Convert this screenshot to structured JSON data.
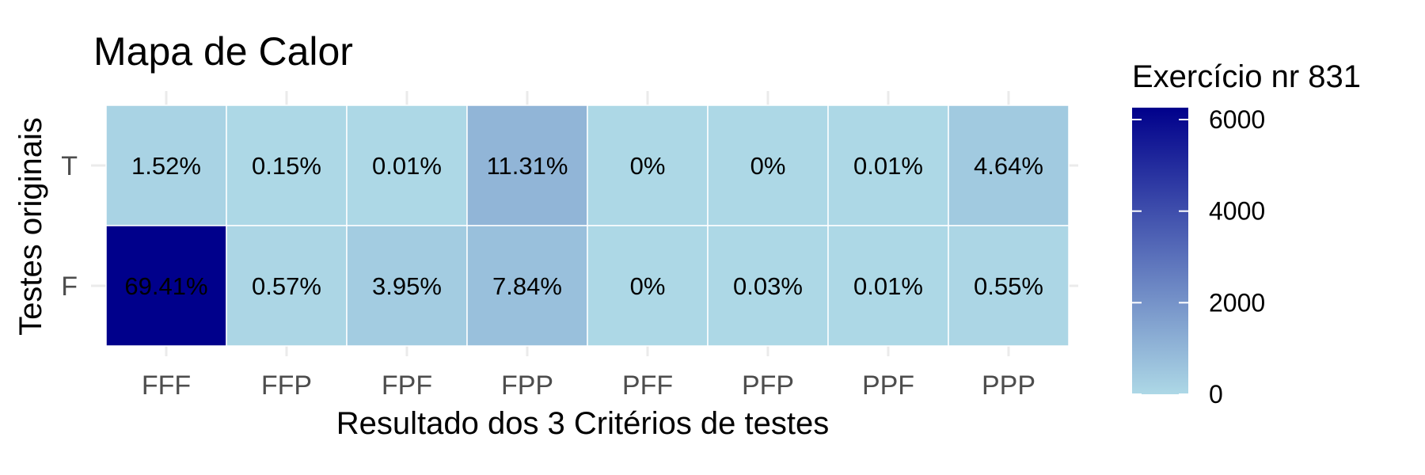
{
  "chart_data": {
    "type": "heatmap",
    "title": "Mapa de Calor",
    "xlabel": "Resultado dos 3 Critérios de testes",
    "ylabel": "Testes originais",
    "x_categories": [
      "FFF",
      "FFP",
      "FPF",
      "FPP",
      "PFF",
      "PFP",
      "PPF",
      "PPP"
    ],
    "y_categories": [
      "T",
      "F"
    ],
    "cells": [
      {
        "y": "T",
        "x": "FFF",
        "label": "1.52%",
        "value": 137
      },
      {
        "y": "T",
        "x": "FFP",
        "label": "0.15%",
        "value": 14
      },
      {
        "y": "T",
        "x": "FPF",
        "label": "0.01%",
        "value": 1
      },
      {
        "y": "T",
        "x": "FPP",
        "label": "11.31%",
        "value": 1020
      },
      {
        "y": "T",
        "x": "PFF",
        "label": "0%",
        "value": 0
      },
      {
        "y": "T",
        "x": "PFP",
        "label": "0%",
        "value": 0
      },
      {
        "y": "T",
        "x": "PPF",
        "label": "0.01%",
        "value": 1
      },
      {
        "y": "T",
        "x": "PPP",
        "label": "4.64%",
        "value": 418
      },
      {
        "y": "F",
        "x": "FFF",
        "label": "69.41%",
        "value": 6260
      },
      {
        "y": "F",
        "x": "FFP",
        "label": "0.57%",
        "value": 51
      },
      {
        "y": "F",
        "x": "FPF",
        "label": "3.95%",
        "value": 356
      },
      {
        "y": "F",
        "x": "FPP",
        "label": "7.84%",
        "value": 707
      },
      {
        "y": "F",
        "x": "PFF",
        "label": "0%",
        "value": 0
      },
      {
        "y": "F",
        "x": "PFP",
        "label": "0.03%",
        "value": 3
      },
      {
        "y": "F",
        "x": "PPF",
        "label": "0.01%",
        "value": 1
      },
      {
        "y": "F",
        "x": "PPP",
        "label": "0.55%",
        "value": 50
      }
    ],
    "legend": {
      "title": "Exercício nr 831",
      "placement": "right",
      "ticks": [
        0,
        2000,
        4000,
        6000
      ],
      "range": [
        0,
        6260
      ],
      "color_low": "#add8e6",
      "color_high": "#00008b"
    },
    "grid": true
  }
}
